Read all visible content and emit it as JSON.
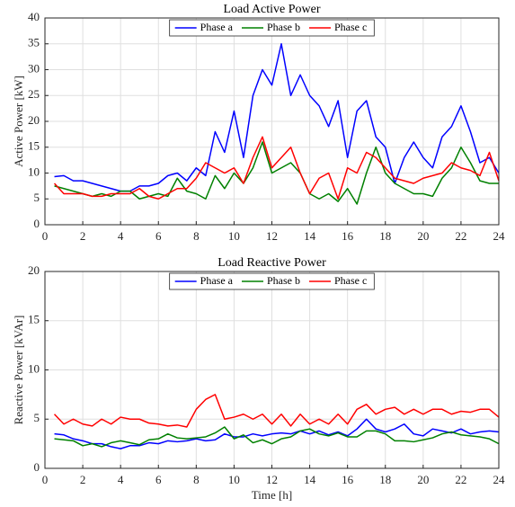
{
  "chart_data": [
    {
      "type": "line",
      "title": "Load Active Power",
      "ylabel": "Active Power [kW]",
      "x": [
        0.5,
        1,
        1.5,
        2,
        2.5,
        3,
        3.5,
        4,
        4.5,
        5,
        5.5,
        6,
        6.5,
        7,
        7.5,
        8,
        8.5,
        9,
        9.5,
        10,
        10.5,
        11,
        11.5,
        12,
        12.5,
        13,
        13.5,
        14,
        14.5,
        15,
        15.5,
        16,
        16.5,
        17,
        17.5,
        18,
        18.5,
        19,
        19.5,
        20,
        20.5,
        21,
        21.5,
        22,
        22.5,
        23,
        23.5,
        24
      ],
      "series": [
        {
          "name": "Phase a",
          "color": "#0000ff",
          "values": [
            9.3,
            9.5,
            8.5,
            8.5,
            8,
            7.5,
            7,
            6.5,
            6.5,
            7.5,
            7.5,
            8,
            9.5,
            10,
            8.5,
            11,
            9.5,
            18,
            14,
            22,
            13,
            25,
            30,
            27,
            35,
            25,
            29,
            25,
            23,
            19,
            24,
            13,
            22,
            24,
            17,
            15,
            8,
            13,
            16,
            13,
            11,
            17,
            19,
            23,
            18,
            12,
            13,
            10
          ]
        },
        {
          "name": "Phase b",
          "color": "#008000",
          "values": [
            7.5,
            7,
            6.5,
            6,
            5.5,
            6,
            5.5,
            6.5,
            6.5,
            5,
            5.5,
            6,
            5.5,
            9,
            6.5,
            6,
            5,
            9.5,
            7,
            10,
            8,
            11,
            16,
            10,
            11,
            12,
            10,
            6,
            5,
            6,
            4.5,
            7,
            4,
            10,
            15,
            10,
            8,
            7,
            6,
            6,
            5.5,
            9,
            11,
            15,
            12,
            8.5,
            8,
            8
          ]
        },
        {
          "name": "Phase c",
          "color": "#ff0000",
          "values": [
            8,
            6,
            6,
            6,
            5.5,
            5.5,
            6,
            6,
            6,
            7,
            5.5,
            5,
            6,
            7,
            7,
            9,
            12,
            11,
            10,
            11,
            8,
            13,
            17,
            11,
            13,
            15,
            10,
            6,
            9,
            10,
            5,
            11,
            10,
            14,
            13,
            11,
            9,
            8.5,
            8,
            9,
            9.5,
            10,
            12,
            11,
            10.5,
            9.5,
            14,
            8.5
          ]
        }
      ],
      "xlim": [
        0,
        24
      ],
      "xticks": [
        0,
        2,
        4,
        6,
        8,
        10,
        12,
        14,
        16,
        18,
        20,
        22,
        24
      ],
      "ylim": [
        0,
        40
      ],
      "yticks": [
        0,
        5,
        10,
        15,
        20,
        25,
        30,
        35,
        40
      ],
      "grid": true,
      "legend": "top"
    },
    {
      "type": "line",
      "title": "Load Reactive Power",
      "ylabel": "Reactive Power [kVAr]",
      "xlabel": "Time [h]",
      "x": [
        0.5,
        1,
        1.5,
        2,
        2.5,
        3,
        3.5,
        4,
        4.5,
        5,
        5.5,
        6,
        6.5,
        7,
        7.5,
        8,
        8.5,
        9,
        9.5,
        10,
        10.5,
        11,
        11.5,
        12,
        12.5,
        13,
        13.5,
        14,
        14.5,
        15,
        15.5,
        16,
        16.5,
        17,
        17.5,
        18,
        18.5,
        19,
        19.5,
        20,
        20.5,
        21,
        21.5,
        22,
        22.5,
        23,
        23.5,
        24
      ],
      "series": [
        {
          "name": "Phase a",
          "color": "#0000ff",
          "values": [
            3.5,
            3.4,
            3,
            2.8,
            2.5,
            2.5,
            2.2,
            2,
            2.3,
            2.3,
            2.6,
            2.5,
            2.8,
            2.7,
            2.8,
            3,
            2.8,
            2.9,
            3.5,
            3.2,
            3.2,
            3.5,
            3.3,
            3.5,
            3.6,
            3.5,
            3.8,
            3.5,
            3.8,
            3.4,
            3.7,
            3.3,
            4,
            5,
            4,
            3.7,
            4,
            4.5,
            3.5,
            3.3,
            4,
            3.8,
            3.6,
            4,
            3.5,
            3.7,
            3.8,
            3.7
          ]
        },
        {
          "name": "Phase b",
          "color": "#008000",
          "values": [
            3,
            2.9,
            2.8,
            2.3,
            2.5,
            2.2,
            2.6,
            2.8,
            2.6,
            2.4,
            2.9,
            3,
            3.5,
            3.1,
            3,
            3.1,
            3.2,
            3.6,
            4.2,
            3,
            3.4,
            2.6,
            2.9,
            2.5,
            3,
            3.2,
            3.8,
            4,
            3.5,
            3.3,
            3.6,
            3.2,
            3.2,
            3.8,
            3.8,
            3.5,
            2.8,
            2.8,
            2.7,
            2.9,
            3.1,
            3.5,
            3.7,
            3.4,
            3.3,
            3.2,
            3,
            2.5
          ]
        },
        {
          "name": "Phase c",
          "color": "#ff0000",
          "values": [
            5.5,
            4.5,
            5,
            4.5,
            4.3,
            5,
            4.5,
            5.2,
            5,
            5,
            4.6,
            4.5,
            4.3,
            4.4,
            4.2,
            6,
            7,
            7.5,
            5,
            5.2,
            5.5,
            5,
            5.5,
            4.5,
            5.5,
            4.3,
            5.5,
            4.5,
            5,
            4.5,
            5.5,
            4.5,
            6,
            6.5,
            5.5,
            6,
            6.2,
            5.5,
            6,
            5.5,
            6,
            6,
            5.5,
            5.8,
            5.7,
            6,
            6,
            5.2
          ]
        }
      ],
      "xlim": [
        0,
        24
      ],
      "xticks": [
        0,
        2,
        4,
        6,
        8,
        10,
        12,
        14,
        16,
        18,
        20,
        22,
        24
      ],
      "ylim": [
        0,
        20
      ],
      "yticks": [
        0,
        5,
        10,
        15,
        20
      ],
      "grid": true,
      "legend": "top"
    }
  ]
}
